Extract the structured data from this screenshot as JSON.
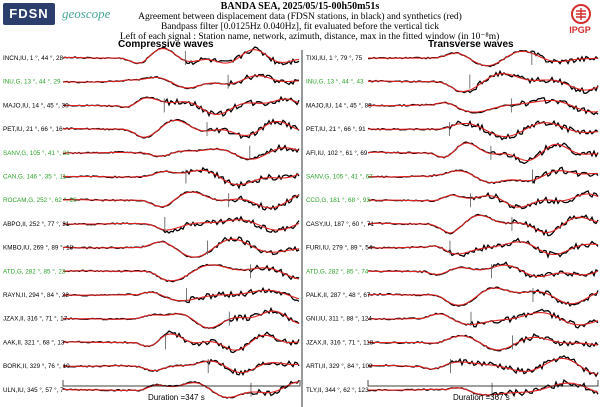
{
  "logos": {
    "fdsn": "FDSN",
    "geoscope": "geoscope",
    "ipgp": "IPGP"
  },
  "header": {
    "title": "BANDA SEA, 2025/05/15-00h50m51s",
    "line1": "Agreement between displacement data (FDSN stations, in black) and synthetics (red)",
    "line2": "Bandpass filter [0.0125Hz 0.040Hz], fit evaluated before the vertical tick",
    "line3": "Left of each signal : Station name, network, azimuth, distance, max in the fitted window (in 10⁻⁸m)"
  },
  "colors": {
    "data": "#000000",
    "synthetic": "#e02020",
    "green_label": "#2ca02c"
  },
  "panels": [
    {
      "title": "Compressive waves",
      "duration": "Duration =347 s",
      "stations": [
        {
          "label": "INCN,IU, 1 °, 44 °, 28",
          "green": false
        },
        {
          "label": "INU,G, 13 °, 44 °, 29",
          "green": true
        },
        {
          "label": "MAJO,IU, 14 °, 45 °, 30",
          "green": false
        },
        {
          "label": "PET,IU, 21 °, 66 °, 16",
          "green": false
        },
        {
          "label": "SANV,G, 105 °, 41 °, 21",
          "green": true
        },
        {
          "label": "CAN,G, 146 °, 35 °, 11",
          "green": true
        },
        {
          "label": "ROCAM,G, 252 °, 62 °, 20",
          "green": true
        },
        {
          "label": "ABPO,II, 252 °, 77 °, 31",
          "green": false
        },
        {
          "label": "KMBO,IU, 269 °, 89 °, 18",
          "green": false
        },
        {
          "label": "ATD,G, 282 °, 85 °, 23",
          "green": true
        },
        {
          "label": "RAYN,II, 294 °, 84 °, 22",
          "green": false
        },
        {
          "label": "JZAX,II, 316 °, 71 °, 17",
          "green": false
        },
        {
          "label": "AAK,II, 321 °, 68 °, 13",
          "green": false
        },
        {
          "label": "BORK,II, 329 °, 76 °, 10",
          "green": false
        },
        {
          "label": "ULN,IU, 345 °, 57 °, 7",
          "green": false
        }
      ]
    },
    {
      "title": "Transverse waves",
      "duration": "Duration =367 s",
      "stations": [
        {
          "label": "TIXI,IU, 1 °, 79 °, 75",
          "green": false
        },
        {
          "label": "INU,G, 13 °, 44 °, 43",
          "green": true
        },
        {
          "label": "MAJO,IU, 14 °, 45 °, 83",
          "green": false
        },
        {
          "label": "PET,IU, 21 °, 66 °, 91",
          "green": false
        },
        {
          "label": "AFI,IU, 102 °, 61 °, 69",
          "green": false
        },
        {
          "label": "SANV,G, 105 °, 41 °, 67",
          "green": true
        },
        {
          "label": "CCD,G, 181 °, 68 °, 93",
          "green": true
        },
        {
          "label": "CASY,IU, 187 °, 60 °, 71",
          "green": false
        },
        {
          "label": "FURI,IU, 279 °, 89 °, 54",
          "green": false
        },
        {
          "label": "ATD,G, 282 °, 85 °, 74",
          "green": true
        },
        {
          "label": "PALK,II, 287 °, 48 °, 67",
          "green": false
        },
        {
          "label": "GNI,IU, 311 °, 88 °, 124",
          "green": false
        },
        {
          "label": "JZAX,II, 316 °, 71 °, 118",
          "green": false
        },
        {
          "label": "ARTI,II, 329 °, 84 °, 109",
          "green": false
        },
        {
          "label": "TLY,II, 344 °, 62 °, 123",
          "green": false
        }
      ]
    }
  ]
}
